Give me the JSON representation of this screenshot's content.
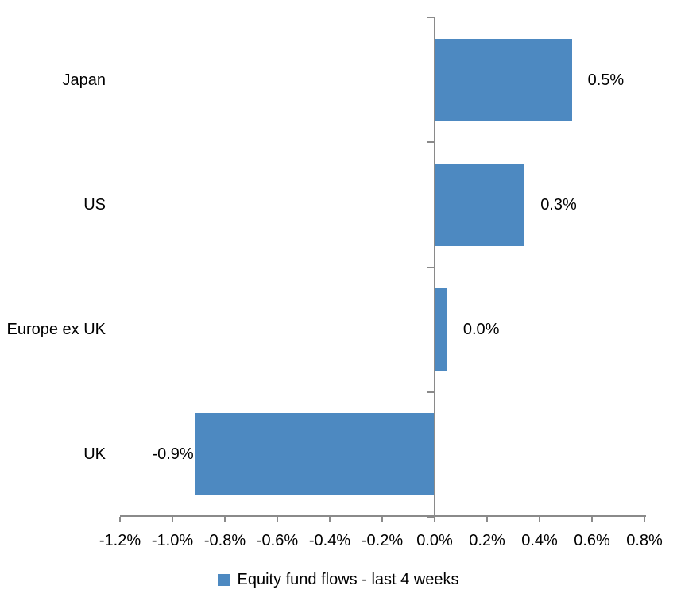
{
  "chart_data": {
    "type": "bar",
    "orientation": "horizontal",
    "title": "",
    "categories": [
      "Japan",
      "US",
      "Europe ex UK",
      "UK"
    ],
    "values": [
      0.5,
      0.3,
      0.0,
      -0.9
    ],
    "bar_extents_pct": [
      0.52,
      0.34,
      0.045,
      -0.91
    ],
    "data_labels": [
      "0.5%",
      "0.3%",
      "0.0%",
      "-0.9%"
    ],
    "series_name": "Equity fund flows - last 4 weeks",
    "x_ticks": [
      -1.2,
      -1.0,
      -0.8,
      -0.6,
      -0.4,
      -0.2,
      0.0,
      0.2,
      0.4,
      0.6,
      0.8
    ],
    "x_tick_labels": [
      "-1.2%",
      "-1.0%",
      "-0.8%",
      "-0.6%",
      "-0.4%",
      "-0.2%",
      "0.0%",
      "0.2%",
      "0.4%",
      "0.6%",
      "0.8%"
    ],
    "xlim": [
      -1.2,
      0.8
    ],
    "grid": false,
    "legend": {
      "label": "Equity fund flows - last 4 weeks",
      "position": "bottom"
    },
    "colors": {
      "bar": "#4d89c1",
      "axis": "#8a8a8a",
      "text": "#000000",
      "background": "#ffffff"
    }
  }
}
